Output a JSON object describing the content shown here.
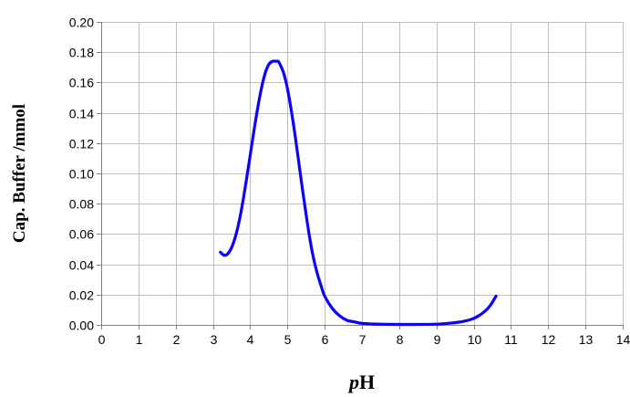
{
  "chart_data": {
    "type": "line",
    "title": "",
    "xlabel_italic": "p",
    "xlabel_rest": "H",
    "ylabel": "Cap. Buffer /mmol",
    "xlim": [
      0,
      14
    ],
    "ylim": [
      0,
      0.2
    ],
    "x_ticks": [
      "0",
      "1",
      "2",
      "3",
      "4",
      "5",
      "6",
      "7",
      "8",
      "9",
      "10",
      "11",
      "12",
      "13",
      "14"
    ],
    "y_ticks": [
      "0.00",
      "0.02",
      "0.04",
      "0.06",
      "0.08",
      "0.10",
      "0.12",
      "0.14",
      "0.16",
      "0.18",
      "0.20"
    ],
    "grid": true,
    "legend": "none",
    "series": [
      {
        "color": "#0a00ff",
        "x": [
          3.2,
          3.3,
          3.4,
          3.5,
          3.6,
          3.7,
          3.8,
          3.9,
          4.0,
          4.1,
          4.2,
          4.3,
          4.4,
          4.5,
          4.6,
          4.7,
          4.75,
          4.8,
          4.9,
          5.0,
          5.1,
          5.2,
          5.3,
          5.4,
          5.5,
          5.6,
          5.7,
          5.8,
          5.9,
          6.0,
          6.2,
          6.4,
          6.6,
          6.8,
          7.0,
          7.3,
          7.6,
          8.0,
          8.5,
          9.0,
          9.3,
          9.6,
          9.9,
          10.1,
          10.3,
          10.45,
          10.6
        ],
        "y": [
          0.048,
          0.046,
          0.047,
          0.051,
          0.058,
          0.068,
          0.081,
          0.096,
          0.112,
          0.128,
          0.143,
          0.156,
          0.166,
          0.172,
          0.174,
          0.174,
          0.174,
          0.172,
          0.166,
          0.156,
          0.142,
          0.126,
          0.108,
          0.09,
          0.073,
          0.057,
          0.044,
          0.034,
          0.026,
          0.019,
          0.011,
          0.006,
          0.003,
          0.002,
          0.001,
          0.0006,
          0.0004,
          0.0003,
          0.0003,
          0.0005,
          0.001,
          0.0018,
          0.0034,
          0.0055,
          0.009,
          0.013,
          0.019
        ]
      }
    ]
  }
}
